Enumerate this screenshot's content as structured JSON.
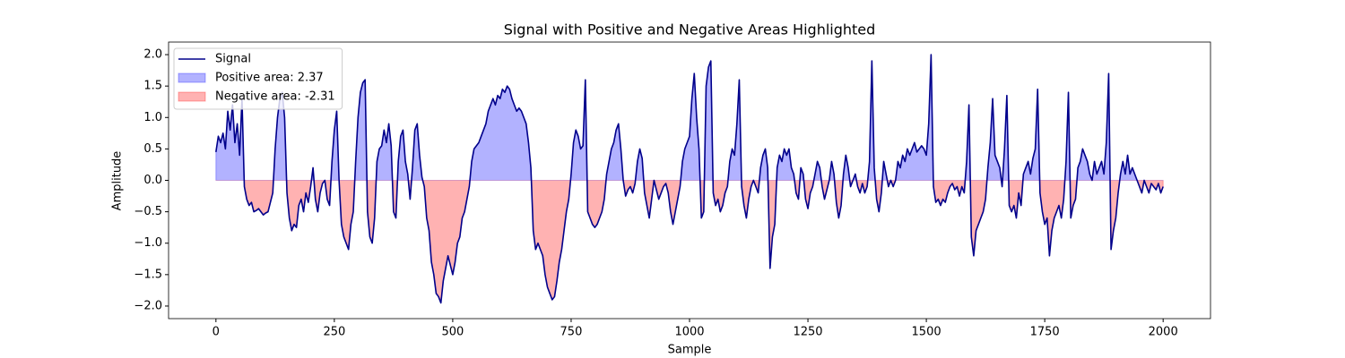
{
  "chart_data": {
    "type": "line",
    "title": "Signal with Positive and Negative Areas Highlighted",
    "x_label": "Sample",
    "y_label": "Amplitude",
    "xlim": [
      -100,
      2100
    ],
    "ylim": [
      -2.2,
      2.2
    ],
    "xticks": [
      0,
      250,
      500,
      750,
      1000,
      1250,
      1500,
      1750,
      2000
    ],
    "yticks": [
      {
        "value": -2,
        "label": "−2.0"
      },
      {
        "value": -1.5,
        "label": "−1.5"
      },
      {
        "value": -1,
        "label": "−1.0"
      },
      {
        "value": -0.5,
        "label": "−0.5"
      },
      {
        "value": 0,
        "label": "0.0"
      },
      0.5,
      {
        "value": 1,
        "label": "1.0"
      },
      1.5,
      {
        "value": 2,
        "label": "2.0"
      }
    ],
    "grid": false,
    "legend": "upper left",
    "x": [
      0,
      5,
      10,
      15,
      20,
      25,
      30,
      35,
      40,
      45,
      50,
      55,
      60,
      65,
      70,
      75,
      80,
      85,
      90,
      95,
      100,
      105,
      110,
      115,
      120,
      125,
      130,
      135,
      140,
      145,
      150,
      155,
      160,
      165,
      170,
      175,
      180,
      185,
      190,
      195,
      200,
      205,
      210,
      215,
      220,
      225,
      230,
      235,
      240,
      245,
      250,
      255,
      260,
      265,
      270,
      275,
      280,
      285,
      290,
      295,
      300,
      305,
      310,
      315,
      320,
      325,
      330,
      335,
      340,
      345,
      350,
      355,
      360,
      365,
      370,
      375,
      380,
      385,
      390,
      395,
      400,
      405,
      410,
      415,
      420,
      425,
      430,
      435,
      440,
      445,
      450,
      455,
      460,
      465,
      470,
      475,
      480,
      485,
      490,
      495,
      500,
      505,
      510,
      515,
      520,
      525,
      530,
      535,
      540,
      545,
      550,
      555,
      560,
      565,
      570,
      575,
      580,
      585,
      590,
      595,
      600,
      605,
      610,
      615,
      620,
      625,
      630,
      635,
      640,
      645,
      650,
      655,
      660,
      665,
      670,
      675,
      680,
      685,
      690,
      695,
      700,
      705,
      710,
      715,
      720,
      725,
      730,
      735,
      740,
      745,
      750,
      755,
      760,
      765,
      770,
      775,
      780,
      785,
      790,
      795,
      800,
      805,
      810,
      815,
      820,
      825,
      830,
      835,
      840,
      845,
      850,
      855,
      860,
      865,
      870,
      875,
      880,
      885,
      890,
      895,
      900,
      905,
      910,
      915,
      920,
      925,
      930,
      935,
      940,
      945,
      950,
      955,
      960,
      965,
      970,
      975,
      980,
      985,
      990,
      995,
      1000,
      1005,
      1010,
      1015,
      1020,
      1025,
      1030,
      1035,
      1040,
      1045,
      1050,
      1055,
      1060,
      1065,
      1070,
      1075,
      1080,
      1085,
      1090,
      1095,
      1100,
      1105,
      1110,
      1115,
      1120,
      1125,
      1130,
      1135,
      1140,
      1145,
      1150,
      1155,
      1160,
      1165,
      1170,
      1175,
      1180,
      1185,
      1190,
      1195,
      1200,
      1205,
      1210,
      1215,
      1220,
      1225,
      1230,
      1235,
      1240,
      1245,
      1250,
      1255,
      1260,
      1265,
      1270,
      1275,
      1280,
      1285,
      1290,
      1295,
      1300,
      1305,
      1310,
      1315,
      1320,
      1325,
      1330,
      1335,
      1340,
      1345,
      1350,
      1355,
      1360,
      1365,
      1370,
      1375,
      1380,
      1385,
      1390,
      1395,
      1400,
      1405,
      1410,
      1415,
      1420,
      1425,
      1430,
      1435,
      1440,
      1445,
      1450,
      1455,
      1460,
      1465,
      1470,
      1475,
      1480,
      1485,
      1490,
      1495,
      1500,
      1505,
      1510,
      1515,
      1520,
      1525,
      1530,
      1535,
      1540,
      1545,
      1550,
      1555,
      1560,
      1565,
      1570,
      1575,
      1580,
      1585,
      1590,
      1595,
      1600,
      1605,
      1610,
      1615,
      1620,
      1625,
      1630,
      1635,
      1640,
      1645,
      1650,
      1655,
      1660,
      1665,
      1670,
      1675,
      1680,
      1685,
      1690,
      1695,
      1700,
      1705,
      1710,
      1715,
      1720,
      1725,
      1730,
      1735,
      1740,
      1745,
      1750,
      1755,
      1760,
      1765,
      1770,
      1775,
      1780,
      1785,
      1790,
      1795,
      1800,
      1805,
      1810,
      1815,
      1820,
      1825,
      1830,
      1835,
      1840,
      1845,
      1850,
      1855,
      1860,
      1865,
      1870,
      1875,
      1880,
      1885,
      1890,
      1895,
      1900,
      1905,
      1910,
      1915,
      1920,
      1925,
      1930,
      1935,
      1940,
      1945,
      1950,
      1955,
      1960,
      1965,
      1970,
      1975,
      1980,
      1985,
      1990,
      1995,
      2000
    ],
    "series": [
      {
        "name": "Signal",
        "color": "#00008b",
        "values": [
          0.45,
          0.7,
          0.6,
          0.75,
          0.5,
          1.1,
          0.8,
          1.2,
          0.6,
          0.9,
          0.4,
          1.3,
          -0.1,
          -0.3,
          -0.4,
          -0.35,
          -0.5,
          -0.48,
          -0.45,
          -0.5,
          -0.55,
          -0.52,
          -0.5,
          -0.35,
          -0.2,
          0.5,
          1.0,
          1.3,
          1.4,
          1.0,
          -0.2,
          -0.6,
          -0.8,
          -0.7,
          -0.75,
          -0.4,
          -0.3,
          -0.5,
          -0.2,
          -0.35,
          -0.1,
          0.2,
          -0.3,
          -0.5,
          -0.2,
          -0.05,
          0.0,
          -0.3,
          -0.4,
          0.3,
          0.8,
          1.1,
          0.0,
          -0.7,
          -0.9,
          -1.0,
          -1.1,
          -0.7,
          -0.5,
          0.3,
          1.0,
          1.4,
          1.55,
          1.6,
          -0.5,
          -0.9,
          -1.0,
          -0.6,
          0.3,
          0.5,
          0.55,
          0.8,
          0.6,
          0.9,
          0.55,
          -0.5,
          -0.6,
          0.3,
          0.7,
          0.8,
          0.3,
          0.1,
          -0.3,
          0.2,
          0.8,
          0.9,
          0.4,
          0.05,
          -0.1,
          -0.6,
          -0.8,
          -1.3,
          -1.5,
          -1.8,
          -1.85,
          -1.95,
          -1.6,
          -1.4,
          -1.2,
          -1.35,
          -1.5,
          -1.3,
          -1.0,
          -0.9,
          -0.6,
          -0.5,
          -0.3,
          -0.1,
          0.3,
          0.5,
          0.55,
          0.6,
          0.7,
          0.8,
          0.9,
          1.1,
          1.2,
          1.3,
          1.2,
          1.35,
          1.3,
          1.45,
          1.4,
          1.5,
          1.45,
          1.3,
          1.2,
          1.1,
          1.15,
          1.1,
          1.0,
          0.9,
          0.6,
          0.2,
          -0.8,
          -1.1,
          -1.0,
          -1.1,
          -1.2,
          -1.5,
          -1.7,
          -1.8,
          -1.9,
          -1.85,
          -1.6,
          -1.3,
          -1.1,
          -0.8,
          -0.5,
          -0.3,
          0.1,
          0.6,
          0.8,
          0.7,
          0.5,
          0.55,
          1.6,
          -0.5,
          -0.6,
          -0.7,
          -0.75,
          -0.7,
          -0.6,
          -0.5,
          -0.3,
          0.1,
          0.3,
          0.5,
          0.6,
          0.8,
          0.9,
          0.5,
          0.0,
          -0.25,
          -0.15,
          -0.1,
          -0.2,
          -0.05,
          0.3,
          0.5,
          0.35,
          -0.2,
          -0.4,
          -0.6,
          -0.3,
          0.0,
          -0.15,
          -0.3,
          -0.2,
          -0.1,
          -0.05,
          -0.2,
          -0.5,
          -0.7,
          -0.5,
          -0.3,
          -0.1,
          0.3,
          0.5,
          0.6,
          0.7,
          1.3,
          1.7,
          1.0,
          0.5,
          -0.6,
          -0.5,
          1.5,
          1.8,
          1.9,
          -0.2,
          -0.4,
          -0.3,
          -0.5,
          -0.4,
          -0.2,
          -0.1,
          0.3,
          0.5,
          0.4,
          0.9,
          1.6,
          -0.1,
          -0.4,
          -0.6,
          -0.3,
          -0.1,
          0.0,
          -0.1,
          -0.2,
          0.2,
          0.4,
          0.5,
          0.2,
          -1.4,
          -0.9,
          -0.7,
          0.2,
          0.4,
          0.3,
          0.5,
          0.4,
          0.5,
          0.2,
          0.1,
          -0.2,
          -0.3,
          0.2,
          0.1,
          -0.3,
          -0.45,
          -0.2,
          -0.1,
          0.1,
          0.3,
          0.2,
          -0.1,
          -0.3,
          -0.15,
          0.0,
          0.3,
          0.1,
          -0.35,
          -0.6,
          -0.4,
          0.1,
          0.4,
          0.2,
          -0.1,
          0.0,
          0.1,
          -0.1,
          -0.2,
          -0.05,
          -0.2,
          -0.1,
          0.3,
          1.9,
          0.2,
          -0.3,
          -0.5,
          -0.2,
          0.3,
          0.1,
          -0.1,
          0.0,
          -0.1,
          0.0,
          0.3,
          0.2,
          0.4,
          0.3,
          0.5,
          0.4,
          0.5,
          0.6,
          0.45,
          0.5,
          0.55,
          0.5,
          0.4,
          0.9,
          2.0,
          -0.1,
          -0.35,
          -0.3,
          -0.4,
          -0.3,
          -0.35,
          -0.2,
          -0.1,
          -0.05,
          -0.15,
          -0.1,
          -0.25,
          -0.1,
          -0.2,
          0.3,
          1.2,
          -0.9,
          -1.2,
          -0.8,
          -0.7,
          -0.6,
          -0.5,
          -0.3,
          0.2,
          0.6,
          1.3,
          0.4,
          0.3,
          0.2,
          -0.1,
          0.5,
          1.35,
          -0.4,
          -0.5,
          -0.4,
          -0.6,
          -0.2,
          -0.4,
          0.1,
          0.2,
          0.3,
          0.1,
          0.35,
          0.5,
          1.45,
          -0.2,
          -0.5,
          -0.7,
          -0.6,
          -1.2,
          -0.8,
          -0.6,
          -0.5,
          -0.4,
          -0.6,
          -0.3,
          0.3,
          1.4,
          -0.6,
          -0.4,
          -0.3,
          0.2,
          0.3,
          0.5,
          0.4,
          0.3,
          0.1,
          0.0,
          0.3,
          0.1,
          0.2,
          0.3,
          0.1,
          0.6,
          1.7,
          -1.1,
          -0.8,
          -0.6,
          -0.2,
          0.1,
          0.3,
          0.1,
          0.4,
          0.1,
          0.2,
          0.1,
          0.0,
          -0.1,
          -0.2,
          0.0,
          -0.1,
          -0.2,
          -0.05,
          -0.1,
          -0.15,
          -0.05,
          -0.2,
          -0.1
        ]
      }
    ],
    "fills": [
      {
        "name": "Positive area: 2.37",
        "color": "#0000ff",
        "alpha": 0.3,
        "where": "above"
      },
      {
        "name": "Negative area: -2.31",
        "color": "#ff0000",
        "alpha": 0.3,
        "where": "below"
      }
    ]
  }
}
